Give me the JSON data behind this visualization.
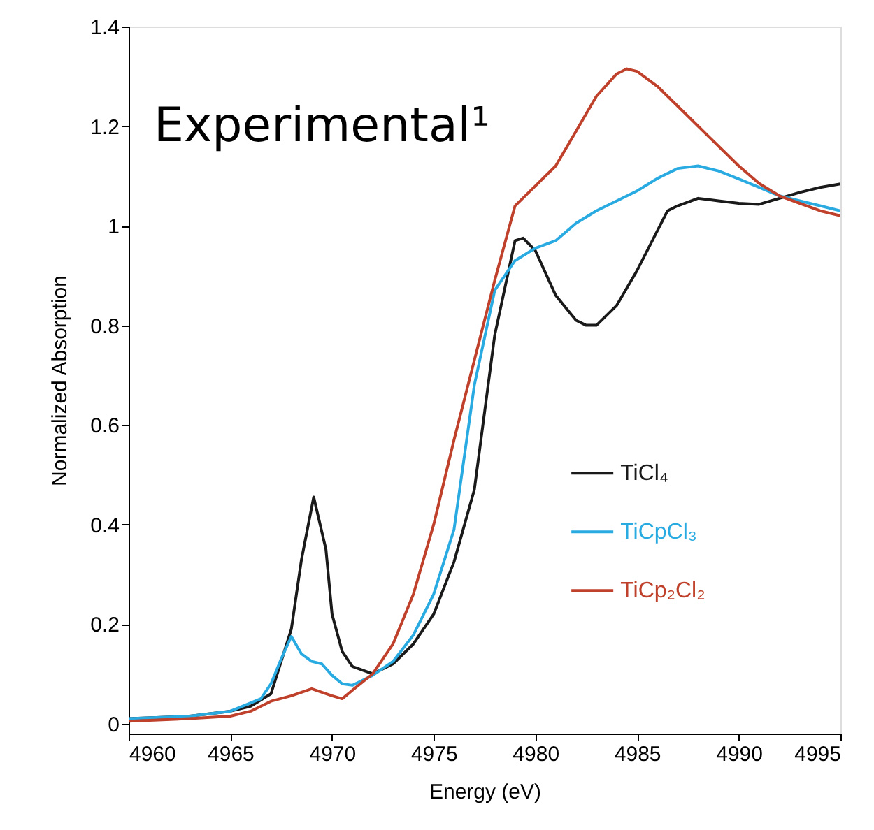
{
  "chart_data": {
    "type": "line",
    "xlabel": "Energy (eV)",
    "ylabel": "Normalized Absorption",
    "annotations": [
      "Experimental¹"
    ],
    "xlim": [
      4960,
      4995
    ],
    "xticks": [
      4960,
      4965,
      4970,
      4975,
      4980,
      4985,
      4990,
      4995
    ],
    "ylim": [
      -0.02,
      1.4
    ],
    "yticks": [
      0,
      0.2,
      0.4,
      0.6,
      0.8,
      1,
      1.2,
      1.4
    ],
    "grid": false,
    "legend": "right",
    "marker": "none",
    "line_style": "solid",
    "series": [
      {
        "name": "TiCl₄",
        "color": "#1a1a1a",
        "x": [
          4960,
          4963,
          4965,
          4966,
          4967,
          4968,
          4968.5,
          4969.1,
          4969.7,
          4970,
          4970.5,
          4971,
          4972,
          4973,
          4974,
          4975,
          4976,
          4977,
          4978,
          4979,
          4979.4,
          4980,
          4981,
          4982,
          4982.5,
          4983,
          4984,
          4985,
          4986,
          4986.5,
          4987,
          4988,
          4989,
          4990,
          4991,
          4992,
          4993,
          4994,
          4995
        ],
        "values": [
          0.01,
          0.015,
          0.025,
          0.035,
          0.06,
          0.19,
          0.33,
          0.455,
          0.35,
          0.22,
          0.145,
          0.115,
          0.1,
          0.12,
          0.16,
          0.22,
          0.325,
          0.47,
          0.78,
          0.97,
          0.975,
          0.95,
          0.86,
          0.81,
          0.8,
          0.8,
          0.84,
          0.91,
          0.99,
          1.03,
          1.04,
          1.055,
          1.05,
          1.045,
          1.043,
          1.055,
          1.067,
          1.077,
          1.084
        ]
      },
      {
        "name": "TiCpCl₃",
        "color": "#29abe2",
        "x": [
          4960,
          4963,
          4965,
          4966.5,
          4967,
          4967.5,
          4968,
          4968.5,
          4969,
          4969.5,
          4970,
          4970.5,
          4971,
          4972,
          4973,
          4974,
          4975,
          4976,
          4977,
          4978,
          4979,
          4980,
          4981,
          4982,
          4983,
          4984,
          4985,
          4986,
          4987,
          4988,
          4989,
          4990,
          4991,
          4992,
          4993,
          4994,
          4995
        ],
        "values": [
          0.01,
          0.015,
          0.025,
          0.05,
          0.08,
          0.13,
          0.175,
          0.14,
          0.125,
          0.12,
          0.097,
          0.08,
          0.077,
          0.097,
          0.125,
          0.178,
          0.26,
          0.39,
          0.68,
          0.87,
          0.93,
          0.955,
          0.97,
          1.005,
          1.03,
          1.05,
          1.07,
          1.095,
          1.115,
          1.12,
          1.11,
          1.094,
          1.077,
          1.06,
          1.05,
          1.04,
          1.03
        ]
      },
      {
        "name": "TiCp₂Cl₂",
        "color": "#c0412b",
        "x": [
          4960,
          4963,
          4965,
          4966,
          4967,
          4968,
          4969,
          4970,
          4970.5,
          4971,
          4972,
          4973,
          4974,
          4975,
          4976,
          4977,
          4978,
          4979,
          4980,
          4981,
          4982,
          4983,
          4984,
          4984.5,
          4985,
          4986,
          4987,
          4988,
          4989,
          4990,
          4991,
          4992,
          4993,
          4994,
          4995
        ],
        "values": [
          0.005,
          0.01,
          0.015,
          0.025,
          0.045,
          0.056,
          0.07,
          0.056,
          0.05,
          0.067,
          0.1,
          0.16,
          0.26,
          0.4,
          0.57,
          0.73,
          0.89,
          1.04,
          1.08,
          1.12,
          1.19,
          1.26,
          1.305,
          1.315,
          1.31,
          1.28,
          1.24,
          1.2,
          1.16,
          1.12,
          1.085,
          1.06,
          1.045,
          1.03,
          1.02
        ]
      }
    ]
  }
}
